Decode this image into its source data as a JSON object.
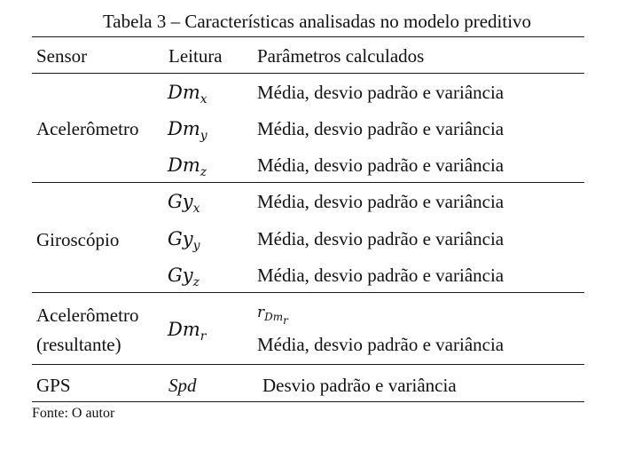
{
  "table": {
    "caption": "Tabela 3 – Características analisadas no modelo preditivo",
    "headers": {
      "sensor": "Sensor",
      "reading": "Leitura",
      "params": "Parâmetros calculados"
    },
    "groups": [
      {
        "sensor": "Acelerômetro",
        "rows": [
          {
            "reading_base": "Dm",
            "reading_sub": "x",
            "params": "Média, desvio padrão e variância"
          },
          {
            "reading_base": "Dm",
            "reading_sub": "y",
            "params": "Média, desvio padrão e variância"
          },
          {
            "reading_base": "Dm",
            "reading_sub": "z",
            "params": "Média, desvio padrão e variância"
          }
        ]
      },
      {
        "sensor": "Giroscópio",
        "rows": [
          {
            "reading_base": "Gy",
            "reading_sub": "x",
            "params": "Média, desvio padrão e variância"
          },
          {
            "reading_base": "Gy",
            "reading_sub": "y",
            "params": "Média, desvio padrão e variância"
          },
          {
            "reading_base": "Gy",
            "reading_sub": "z",
            "params": "Média, desvio padrão e variância"
          }
        ]
      },
      {
        "sensor_line1": "Acelerômetro",
        "sensor_line2": "(resultante)",
        "reading_base": "Dm",
        "reading_sub": "r",
        "param_line1_base": "r",
        "param_line1_sub": "Dm",
        "param_line1_subsub": "r",
        "params": "Média, desvio padrão e variância"
      },
      {
        "sensor": "GPS",
        "reading": "Spd",
        "params": "Desvio padrão e variância"
      }
    ],
    "source": "Fonte: O autor"
  }
}
